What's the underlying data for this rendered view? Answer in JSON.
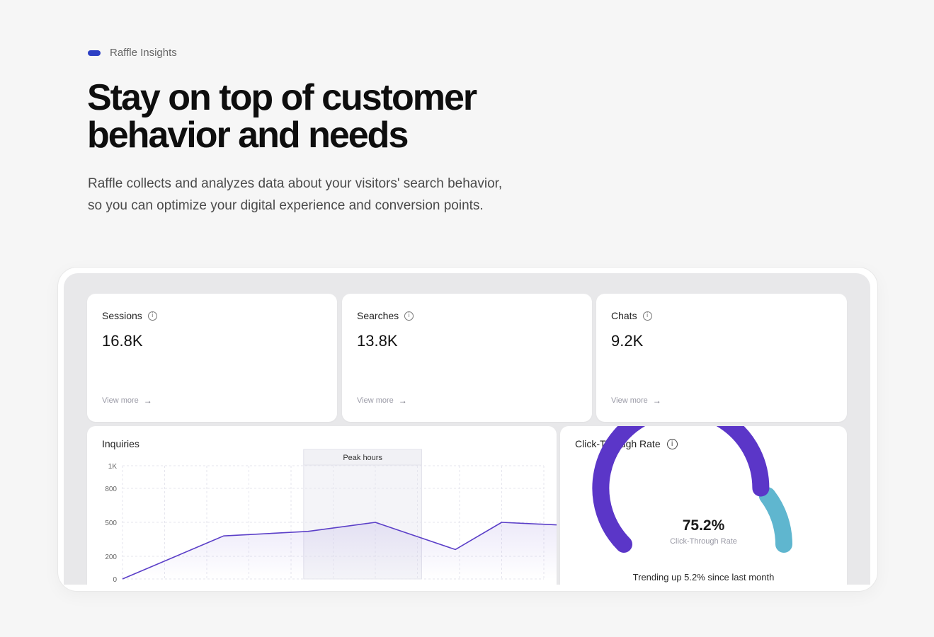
{
  "eyebrow": {
    "label": "Raffle Insights",
    "accent": "#2c3fc4"
  },
  "headline": {
    "line1": "Stay on top of customer",
    "line2": "behavior and needs"
  },
  "lede": {
    "line1": "Raffle collects and analyzes data about your visitors' search behavior,",
    "line2": "so you can optimize your digital experience and conversion points."
  },
  "stats": [
    {
      "label": "Sessions",
      "value": "16.8K",
      "more": "View more",
      "icon": "info-icon"
    },
    {
      "label": "Searches",
      "value": "13.8K",
      "more": "View more",
      "icon": "info-icon"
    },
    {
      "label": "Chats",
      "value": "9.2K",
      "more": "View more",
      "icon": "info-icon"
    }
  ],
  "inquiries": {
    "title": "Inquiries",
    "peak_label": "Peak hours",
    "line_color": "#5b3fc8"
  },
  "chart_data": {
    "type": "line",
    "title": "Inquiries",
    "y_ticks": [
      "1K",
      "800",
      "500",
      "200",
      "0"
    ],
    "y_tick_values": [
      1000,
      800,
      500,
      200,
      0
    ],
    "ylim": [
      0,
      1000
    ],
    "x_count": 11,
    "x": [
      0,
      2.4,
      4.4,
      6,
      7.9,
      9,
      10.75
    ],
    "values": [
      0,
      380,
      420,
      500,
      260,
      500,
      470
    ],
    "grid": true,
    "highlight": {
      "label": "Peak hours",
      "x_start": 4.3,
      "x_end": 7.1
    }
  },
  "ctr": {
    "title": "Click-Through Rate",
    "value": "75.2%",
    "sublabel": "Click-Through Rate",
    "trend": "Trending up 5.2% since last month",
    "percent": 75.2,
    "primary_color": "#5b36c8",
    "secondary_color": "#5fb6cf"
  }
}
